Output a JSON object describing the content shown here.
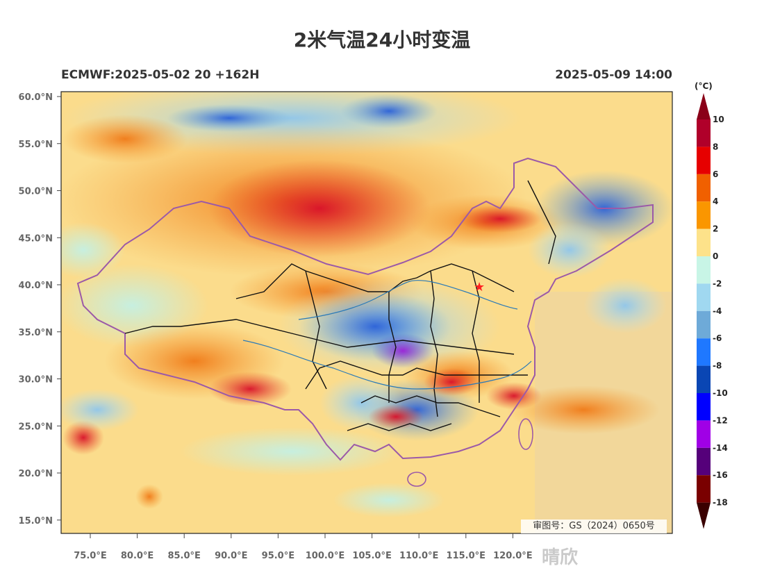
{
  "title": "2米气温24小时变温",
  "subtitle_left": "ECMWF:2025-05-02 20 +162H",
  "subtitle_right": "2025-05-09 14:00",
  "approval_text": "审图号：GS（2024）0650号",
  "watermark_text": "晴欣",
  "colorbar": {
    "unit": "(°C)",
    "labels": [
      "10",
      "8",
      "6",
      "4",
      "2",
      "0",
      "-2",
      "-4",
      "-6",
      "-8",
      "-10",
      "-12",
      "-14",
      "-16",
      "-18"
    ],
    "colors": [
      "#b0002a",
      "#e60000",
      "#f06000",
      "#fa9600",
      "#fde28a",
      "#c8f5e6",
      "#a0d8f0",
      "#6eaad8",
      "#1f78ff",
      "#0a46b4",
      "#0000ff",
      "#a000e6",
      "#55007a",
      "#7a0000"
    ]
  },
  "axes": {
    "lon_labels": [
      "75.0°E",
      "80.0°E",
      "85.0°E",
      "90.0°E",
      "95.0°E",
      "100.0°E",
      "105.0°E",
      "110.0°E",
      "115.0°E",
      "120.0°E"
    ],
    "lat_labels": [
      "60.0°N",
      "55.0°N",
      "50.0°N",
      "45.0°N",
      "40.0°N",
      "35.0°N",
      "30.0°N",
      "25.0°N",
      "20.0°N",
      "15.0°N"
    ]
  },
  "marker": {
    "name": "Beijing",
    "symbol": "★",
    "color": "#ff2020"
  }
}
